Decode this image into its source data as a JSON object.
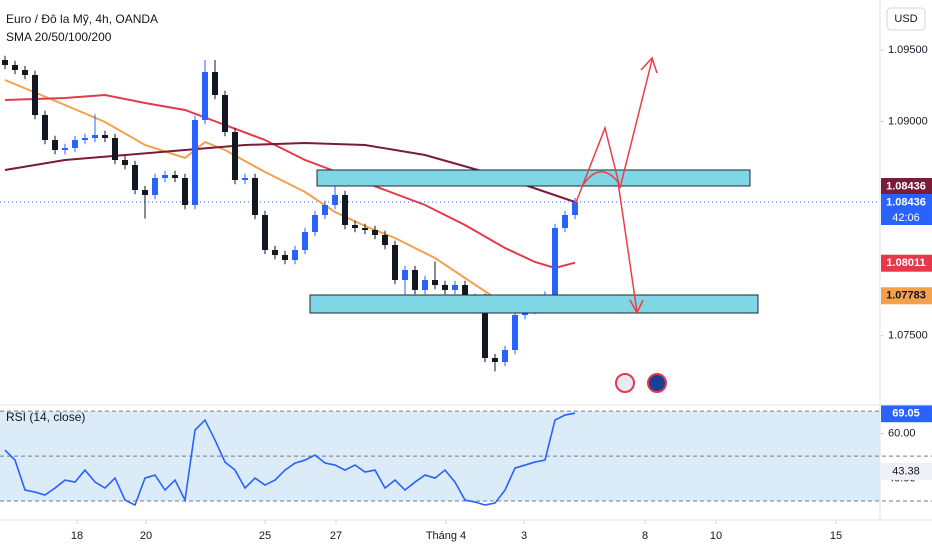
{
  "chart_data": [
    {
      "type": "candlestick",
      "title": "Euro / Đô la Mỹ, 4h, OANDA",
      "subtitle": "SMA 20/50/100/200",
      "currency": "USD",
      "countdown": "42:06",
      "up_color": "#2962ff",
      "down_color": "#131722",
      "open": [
        1.0943,
        1.09395,
        1.0936,
        1.09325,
        1.09045,
        1.0887,
        1.088,
        1.08814,
        1.0887,
        1.08884,
        1.08905,
        1.08884,
        1.0873,
        1.08695,
        1.0852,
        1.08485,
        1.08604,
        1.08625,
        1.08604,
        1.08415,
        1.0901,
        1.09346,
        1.09185,
        1.08926,
        1.0859,
        1.08604,
        1.08345,
        1.081,
        1.08065,
        1.0803,
        1.081,
        1.08226,
        1.08345,
        1.08415,
        1.08485,
        1.08275,
        1.08254,
        1.0824,
        1.08205,
        1.08135,
        1.0789,
        1.0796,
        1.0782,
        1.0789,
        1.07855,
        1.0782,
        1.07855,
        1.0775,
        1.07765,
        1.07344,
        1.07316,
        1.074,
        1.07645,
        1.0768,
        1.07694,
        1.0775,
        1.08254,
        1.08345
      ],
      "high": [
        1.0946,
        1.09425,
        1.0939,
        1.09355,
        1.09075,
        1.089,
        1.08844,
        1.089,
        1.08914,
        1.0905,
        1.08935,
        1.08914,
        1.0876,
        1.08725,
        1.0855,
        1.08634,
        1.08655,
        1.08655,
        1.08634,
        1.0904,
        1.0943,
        1.0943,
        1.09215,
        1.08956,
        1.08634,
        1.08634,
        1.08375,
        1.0813,
        1.08095,
        1.0813,
        1.08256,
        1.08375,
        1.08445,
        1.0855,
        1.08515,
        1.08305,
        1.08284,
        1.0827,
        1.08235,
        1.08165,
        1.0799,
        1.0799,
        1.0792,
        1.0802,
        1.07885,
        1.07885,
        1.07885,
        1.07795,
        1.07795,
        1.07374,
        1.0743,
        1.07675,
        1.0771,
        1.0775,
        1.0781,
        1.08284,
        1.08375,
        1.08466
      ],
      "low": [
        1.09365,
        1.0933,
        1.09295,
        1.09015,
        1.0884,
        1.0877,
        1.0877,
        1.08784,
        1.0884,
        1.08854,
        1.08854,
        1.087,
        1.08665,
        1.0849,
        1.0832,
        1.08455,
        1.08574,
        1.08574,
        1.08385,
        1.08385,
        1.0898,
        1.09155,
        1.08896,
        1.0856,
        1.0856,
        1.08315,
        1.0807,
        1.08035,
        1.08,
        1.08,
        1.0807,
        1.08196,
        1.08315,
        1.08385,
        1.08245,
        1.08224,
        1.0821,
        1.08175,
        1.08105,
        1.0786,
        1.0776,
        1.0779,
        1.0779,
        1.07825,
        1.0779,
        1.0779,
        1.0772,
        1.0772,
        1.07314,
        1.0725,
        1.07286,
        1.0737,
        1.07615,
        1.0765,
        1.07664,
        1.0772,
        1.08224,
        1.08315
      ],
      "close": [
        1.09395,
        1.0936,
        1.09325,
        1.09045,
        1.0887,
        1.088,
        1.08814,
        1.0887,
        1.08884,
        1.08905,
        1.08884,
        1.0873,
        1.08695,
        1.0852,
        1.08485,
        1.08604,
        1.08625,
        1.08604,
        1.08415,
        1.0901,
        1.09346,
        1.09185,
        1.08926,
        1.0859,
        1.08604,
        1.08345,
        1.081,
        1.08065,
        1.0803,
        1.081,
        1.08226,
        1.08345,
        1.08415,
        1.08485,
        1.08275,
        1.08254,
        1.0824,
        1.08205,
        1.08135,
        1.0789,
        1.0796,
        1.0782,
        1.0789,
        1.07855,
        1.0782,
        1.07855,
        1.0775,
        1.07765,
        1.07344,
        1.07316,
        1.074,
        1.07645,
        1.0768,
        1.07694,
        1.0775,
        1.08254,
        1.08345,
        1.08436
      ],
      "sma": [
        {
          "color": "#f5a04b",
          "x": [
            0,
            6,
            10,
            14,
            18,
            20,
            22,
            26,
            30,
            33,
            36,
            39,
            43,
            46,
            49,
            52,
            54,
            57
          ],
          "values": [
            1.0929,
            1.09115,
            1.08996,
            1.08835,
            1.08744,
            1.08856,
            1.088,
            1.08646,
            1.08506,
            1.08366,
            1.08268,
            1.08184,
            1.08044,
            1.07904,
            1.07764,
            1.07701,
            1.07694,
            1.07783
          ]
        },
        {
          "color": "#e5394a",
          "x": [
            0,
            6,
            10,
            14,
            18,
            22,
            26,
            30,
            34,
            38,
            42,
            46,
            50,
            53,
            55,
            57
          ],
          "values": [
            1.0915,
            1.09164,
            1.09185,
            1.09129,
            1.0908,
            1.08975,
            1.0887,
            1.0873,
            1.08625,
            1.0852,
            1.08415,
            1.08275,
            1.08114,
            1.08016,
            1.07974,
            1.08011
          ]
        },
        {
          "color": "#7b1b3a",
          "x": [
            0,
            6,
            12,
            18,
            24,
            30,
            36,
            42,
            48,
            52,
            57
          ],
          "values": [
            1.0866,
            1.0873,
            1.08765,
            1.088,
            1.08835,
            1.08849,
            1.08835,
            1.08765,
            1.08646,
            1.08555,
            1.08436
          ]
        }
      ],
      "xlim": [
        -0.5,
        87.5
      ],
      "xticks": [
        {
          "value": 7.2,
          "label": "18"
        },
        {
          "value": 14.1,
          "label": "20"
        },
        {
          "value": 26,
          "label": "25"
        },
        {
          "value": 33.1,
          "label": "27"
        },
        {
          "value": 44.1,
          "label": "Tháng 4"
        },
        {
          "value": 51.9,
          "label": "3"
        },
        {
          "value": 64,
          "label": "8"
        },
        {
          "value": 71.1,
          "label": "10"
        },
        {
          "value": 83.1,
          "label": "15"
        }
      ],
      "ylim": [
        1.07015,
        1.0985
      ],
      "yticks": [
        {
          "value": 1.095,
          "label": "1.09500"
        },
        {
          "value": 1.09,
          "label": "1.09000"
        },
        {
          "value": 1.075,
          "label": "1.07500"
        }
      ]
    },
    {
      "type": "line",
      "title": "RSI (14, close)",
      "color": "#2962ff",
      "ma_value": 43.38,
      "values": [
        52.67,
        48.22,
        34.89,
        34,
        32.67,
        35.78,
        39.33,
        38.44,
        43.78,
        38.44,
        35.78,
        40.22,
        30.44,
        28.22,
        40.22,
        41.56,
        34.89,
        39.33,
        30.44,
        61.56,
        66,
        57.11,
        47.33,
        43.78,
        35.78,
        40.22,
        37.11,
        39.33,
        43.78,
        46.89,
        48.22,
        50.44,
        46.89,
        46,
        43.78,
        46,
        42.89,
        43.78,
        35.78,
        39.33,
        34.89,
        38.44,
        41.56,
        40.22,
        43.78,
        38.44,
        30.44,
        29.56,
        28.22,
        29.11,
        34.89,
        44.67,
        46,
        47.33,
        48.22,
        66,
        68.22,
        69.05
      ],
      "xlim": [
        -0.5,
        87.5
      ],
      "ylim": [
        23.8,
        72.7
      ],
      "yticks": [
        {
          "value": 60,
          "label": "60.00"
        },
        {
          "value": 40,
          "label": "40.00"
        }
      ],
      "levels": [
        70,
        50,
        30
      ]
    }
  ]
}
